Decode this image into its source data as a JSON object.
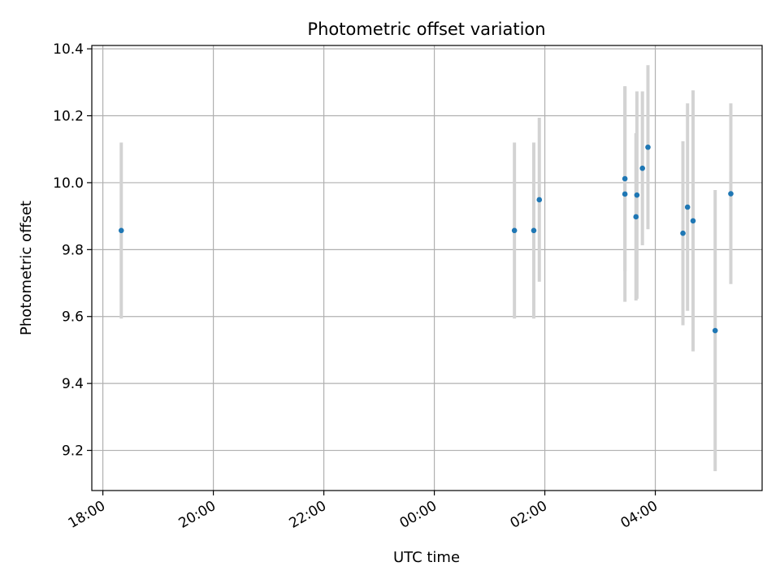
{
  "chart_data": {
    "type": "scatter",
    "title": "Photometric offset variation",
    "xlabel": "UTC time",
    "ylabel": "Photometric offset",
    "xlim": [
      "17:48",
      "05:56"
    ],
    "ylim": [
      9.08,
      10.41
    ],
    "xticks": [
      "18:00",
      "20:00",
      "22:00",
      "00:00",
      "02:00",
      "04:00"
    ],
    "yticks": [
      "9.2",
      "9.4",
      "9.6",
      "9.8",
      "10.0",
      "10.2",
      "10.4"
    ],
    "grid": true,
    "colors": {
      "point": "#1f77b4",
      "errorbar": "#d3d3d3",
      "grid": "#b0b0b0"
    },
    "points": [
      {
        "t": "18:20",
        "y": 9.857,
        "err": 0.263
      },
      {
        "t": "01:27",
        "y": 9.857,
        "err": 0.263
      },
      {
        "t": "01:48",
        "y": 9.857,
        "err": 0.263
      },
      {
        "t": "01:54",
        "y": 9.949,
        "err": 0.245
      },
      {
        "t": "03:27",
        "y": 10.012,
        "err": 0.276
      },
      {
        "t": "03:27",
        "y": 9.966,
        "err": 0.322
      },
      {
        "t": "03:39",
        "y": 9.898,
        "err": 0.25
      },
      {
        "t": "03:40",
        "y": 9.963,
        "err": 0.31
      },
      {
        "t": "03:46",
        "y": 10.043,
        "err": 0.23
      },
      {
        "t": "03:52",
        "y": 10.106,
        "err": 0.245
      },
      {
        "t": "04:30",
        "y": 9.849,
        "err": 0.275
      },
      {
        "t": "04:35",
        "y": 9.927,
        "err": 0.31
      },
      {
        "t": "04:41",
        "y": 9.886,
        "err": 0.39
      },
      {
        "t": "05:05",
        "y": 9.558,
        "err": 0.42
      },
      {
        "t": "05:22",
        "y": 9.967,
        "err": 0.27
      }
    ]
  }
}
